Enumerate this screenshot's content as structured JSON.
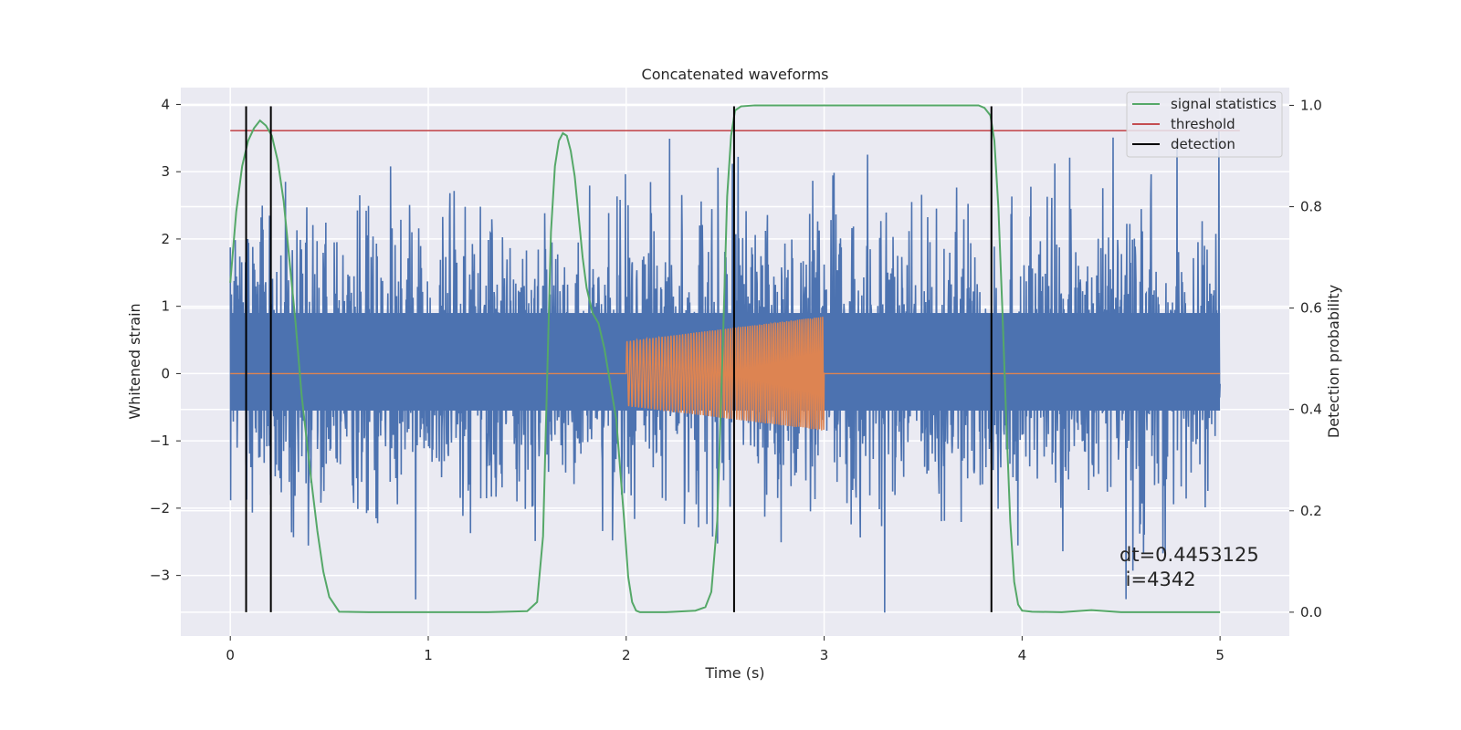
{
  "chart_data": {
    "type": "line",
    "title": "Concatenated waveforms",
    "xlabel": "Time (s)",
    "ylabel": "Whitened strain",
    "y2label": "Detection probability",
    "xlim": [
      -0.25,
      5.35
    ],
    "ylim": [
      -3.9,
      4.25
    ],
    "y2lim": [
      -0.047,
      1.035
    ],
    "xticks": [
      0,
      1,
      2,
      3,
      4,
      5
    ],
    "yticks": [
      -3,
      -2,
      -1,
      0,
      1,
      2,
      3,
      4
    ],
    "y2ticks": [
      0.0,
      0.2,
      0.4,
      0.6,
      0.8,
      1.0
    ],
    "xtick_labels": [
      "0",
      "1",
      "2",
      "3",
      "4",
      "5"
    ],
    "ytick_labels": [
      "−3",
      "−2",
      "−1",
      "0",
      "1",
      "2",
      "3",
      "4"
    ],
    "y2tick_labels": [
      "0.0",
      "0.2",
      "0.4",
      "0.6",
      "0.8",
      "1.0"
    ],
    "grid": true,
    "legend_position": "top-right",
    "legend": [
      {
        "label": "signal statistics",
        "color": "#55a868"
      },
      {
        "label": "threshold",
        "color": "#c44e52"
      },
      {
        "label": "detection",
        "color": "#000000"
      }
    ],
    "colors": {
      "strain": "#4c72b0",
      "injection": "#dd8452",
      "signal_statistics": "#55a868",
      "threshold": "#c44e52",
      "detection": "#000000",
      "plot_background": "#eaeaf2",
      "grid": "#ffffff"
    },
    "series": [
      {
        "legend_label": "",
        "axis": "left",
        "kind": "noise",
        "x_range": [
          0,
          5
        ],
        "envelope": {
          "typical_max": 2.4,
          "typical_min": -2.4,
          "max": 3.9,
          "min": -3.55,
          "dense_band": [
            -0.55,
            0.9
          ]
        }
      },
      {
        "legend_label": "",
        "axis": "left",
        "kind": "chirp",
        "x": [
          0,
          2.0,
          3.0,
          5.0
        ],
        "flat_value": 0,
        "chirp_range": [
          2.0,
          3.0
        ],
        "amplitude_start": 0.48,
        "amplitude_end": 0.85,
        "cycles": 78
      },
      {
        "name": "signal statistics",
        "axis": "right",
        "x": [
          0.0,
          0.03,
          0.06,
          0.09,
          0.12,
          0.15,
          0.18,
          0.21,
          0.24,
          0.27,
          0.3,
          0.33,
          0.36,
          0.4,
          0.44,
          0.47,
          0.5,
          0.55,
          0.7,
          1.0,
          1.3,
          1.5,
          1.55,
          1.58,
          1.6,
          1.62,
          1.64,
          1.66,
          1.68,
          1.7,
          1.72,
          1.74,
          1.76,
          1.78,
          1.8,
          1.83,
          1.86,
          1.89,
          1.92,
          1.95,
          1.97,
          1.99,
          2.01,
          2.03,
          2.05,
          2.07,
          2.1,
          2.2,
          2.35,
          2.4,
          2.43,
          2.46,
          2.49,
          2.51,
          2.53,
          2.55,
          2.58,
          2.65,
          3.0,
          3.5,
          3.78,
          3.81,
          3.84,
          3.86,
          3.88,
          3.9,
          3.92,
          3.94,
          3.96,
          3.98,
          4.0,
          4.05,
          4.2,
          4.35,
          4.5,
          5.0
        ],
        "y": [
          0.65,
          0.79,
          0.88,
          0.93,
          0.955,
          0.97,
          0.96,
          0.94,
          0.89,
          0.81,
          0.69,
          0.57,
          0.43,
          0.29,
          0.16,
          0.08,
          0.03,
          0.001,
          0.0,
          0.0,
          0.0,
          0.002,
          0.02,
          0.15,
          0.45,
          0.75,
          0.88,
          0.93,
          0.945,
          0.94,
          0.91,
          0.86,
          0.78,
          0.7,
          0.64,
          0.59,
          0.57,
          0.52,
          0.45,
          0.38,
          0.28,
          0.18,
          0.07,
          0.02,
          0.003,
          0.0,
          0.0,
          0.0,
          0.003,
          0.01,
          0.04,
          0.18,
          0.55,
          0.82,
          0.94,
          0.99,
          0.998,
          1.0,
          1.0,
          1.0,
          1.0,
          0.995,
          0.98,
          0.93,
          0.8,
          0.6,
          0.38,
          0.18,
          0.06,
          0.015,
          0.003,
          0.001,
          0.0,
          0.004,
          0.0,
          0.0
        ]
      },
      {
        "name": "threshold",
        "axis": "right",
        "x": [
          0,
          5.1
        ],
        "y": [
          0.95,
          0.95
        ]
      }
    ],
    "detections": [
      0.08,
      0.205,
      2.545,
      3.845
    ],
    "detection_range": [
      0.0,
      0.998
    ],
    "annotations": [
      "dt=0.4453125",
      " i=4342"
    ]
  }
}
